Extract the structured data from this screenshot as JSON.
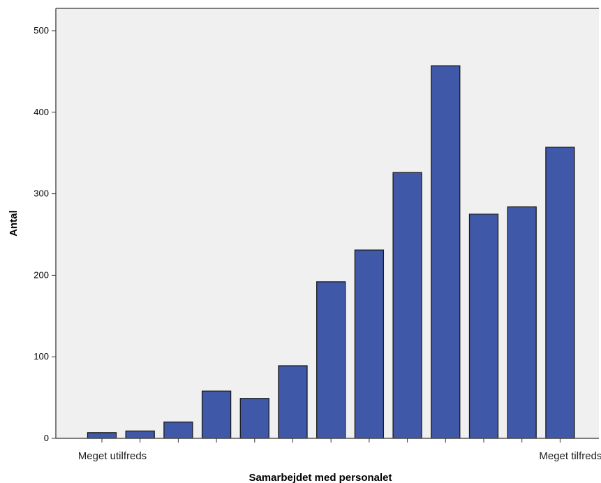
{
  "chart_data": {
    "type": "bar",
    "categories": [
      "Meget utilfreds",
      "",
      "",
      "",
      "",
      "",
      "",
      "",
      "",
      "",
      "",
      "",
      "Meget tilfreds"
    ],
    "values": [
      7,
      9,
      20,
      58,
      49,
      89,
      192,
      231,
      326,
      457,
      275,
      284,
      357
    ],
    "title": "",
    "xlabel": "Samarbejdet med personalet",
    "ylabel": "Antal",
    "ylim": [
      0,
      500
    ],
    "yticks": [
      "0",
      "100",
      "200",
      "300",
      "400",
      "500"
    ],
    "grid": false,
    "colors": {
      "bar_fill": "#3f58a8",
      "bar_stroke": "#1a1a1a",
      "plot_bg": "#f0f0f0",
      "axis": "#555555"
    }
  }
}
